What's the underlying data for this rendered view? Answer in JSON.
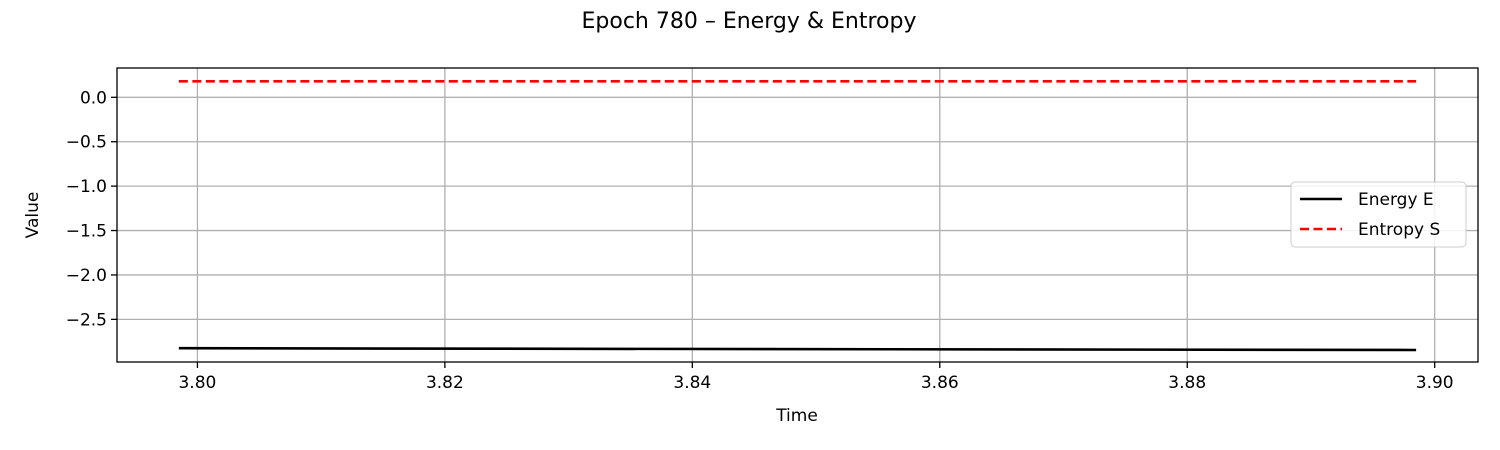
{
  "chart_data": {
    "type": "line",
    "title": "Epoch 780 – Energy & Entropy",
    "xlabel": "Time",
    "ylabel": "Value",
    "xlim": [
      3.7935,
      3.9035
    ],
    "ylim": [
      -2.98,
      0.33
    ],
    "xticks": [
      3.8,
      3.82,
      3.84,
      3.86,
      3.88,
      3.9
    ],
    "xtick_labels": [
      "3.80",
      "3.82",
      "3.84",
      "3.86",
      "3.88",
      "3.90"
    ],
    "yticks": [
      0.0,
      -0.5,
      -1.0,
      -1.5,
      -2.0,
      -2.5
    ],
    "ytick_labels": [
      "0.0",
      "−0.5",
      "−1.0",
      "−1.5",
      "−2.0",
      "−2.5"
    ],
    "grid": true,
    "legend_position": "center-right",
    "series": [
      {
        "name": "Energy E",
        "color": "#000000",
        "style": "solid",
        "x": [
          3.7985,
          3.8985
        ],
        "y": [
          -2.825,
          -2.845
        ]
      },
      {
        "name": "Entropy S",
        "color": "#ff0000",
        "style": "dashed",
        "x": [
          3.7985,
          3.8985
        ],
        "y": [
          0.18,
          0.18
        ]
      }
    ]
  }
}
